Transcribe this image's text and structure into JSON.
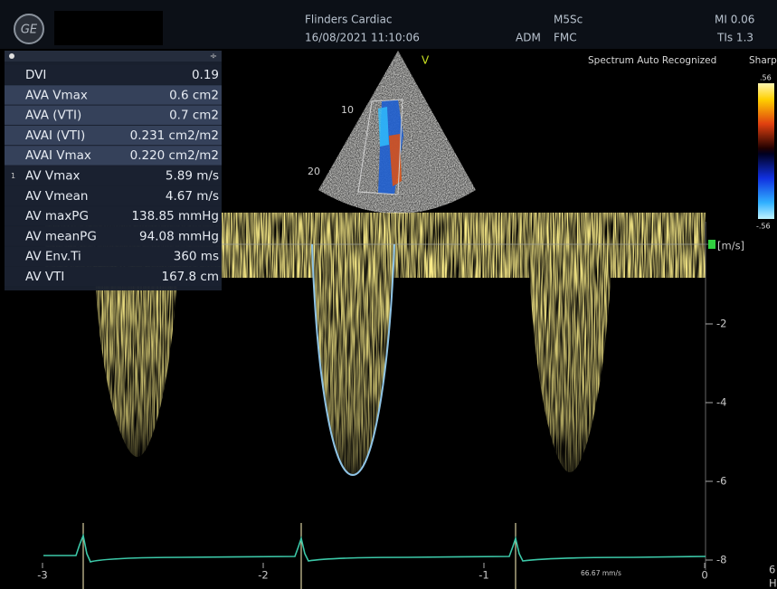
{
  "header": {
    "site": "Flinders Cardiac",
    "datetime": "16/08/2021 11:10:06",
    "probe": "M5Sc",
    "preset": "ADM",
    "operator": "FMC",
    "mi": "MI 0.06",
    "tis": "TIs 1.3"
  },
  "status": {
    "spectrum": "Spectrum Auto Recognized",
    "mode": "Sharp",
    "marker": "V"
  },
  "measurements": {
    "index": "1",
    "rows": [
      {
        "label": "DVI",
        "value": "0.19"
      },
      {
        "label": "AVA Vmax",
        "value": "0.6 cm2"
      },
      {
        "label": "AVA (VTI)",
        "value": "0.7 cm2"
      },
      {
        "label": "AVAI (VTI)",
        "value": "0.231 cm2/m2"
      },
      {
        "label": "AVAI Vmax",
        "value": "0.220 cm2/m2"
      },
      {
        "label": "AV Vmax",
        "value": "5.89 m/s"
      },
      {
        "label": "AV Vmean",
        "value": "4.67 m/s"
      },
      {
        "label": "AV maxPG",
        "value": "138.85 mmHg"
      },
      {
        "label": "AV meanPG",
        "value": "94.08 mmHg"
      },
      {
        "label": "AV Env.Ti",
        "value": "360 ms"
      },
      {
        "label": "AV VTI",
        "value": "167.8 cm"
      }
    ]
  },
  "image": {
    "depth_labels": [
      "10",
      "20"
    ],
    "color_scale": [
      ".56",
      "-.56"
    ]
  },
  "doppler": {
    "unit": "[m/s]",
    "velocity_labels": [
      "-2",
      "-4",
      "-6",
      "-8"
    ],
    "time_labels": [
      "-3",
      "-2",
      "-1",
      "0"
    ],
    "sweep_speed": "66.67 mm/s",
    "edge": [
      "6",
      "H"
    ]
  }
}
